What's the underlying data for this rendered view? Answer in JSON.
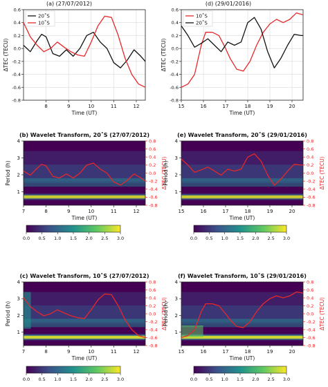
{
  "figure": {
    "panels": [
      {
        "id": "a",
        "title": "(a)    (27/07/2012)"
      },
      {
        "id": "d",
        "title": "(d)    (29/01/2016)"
      },
      {
        "id": "b",
        "title": "(b) Wavelet Transform, 20˚S (27/07/2012)"
      },
      {
        "id": "e",
        "title": "(e) Wavelet Transform, 20˚S (29/01/2016)"
      },
      {
        "id": "c",
        "title": "(c) Wavelet Transform, 10˚S (27/07/2012)"
      },
      {
        "id": "f",
        "title": "(f) Wavelet Transform, 10˚S (29/01/2016)"
      }
    ],
    "xlabel": "Time (UT)",
    "tec_label": "ΔTEC (TECU)",
    "period_label": "Period (h)",
    "colorbar_ticks": [
      "0.0",
      "0.5",
      "1.0",
      "1.5",
      "2.0",
      "2.5",
      "3.0"
    ],
    "colors": {
      "red": "#e8272a",
      "black": "#111111",
      "grid": "#d9d9d9"
    }
  },
  "chart_data": [
    {
      "panel": "a",
      "type": "line",
      "xlim": [
        7,
        12.4
      ],
      "ylim": [
        -0.8,
        0.6
      ],
      "xticks": [
        8,
        9,
        10,
        11,
        12
      ],
      "yticks": [
        -0.8,
        -0.6,
        -0.4,
        -0.2,
        0,
        0.2,
        0.4,
        0.6
      ],
      "grid": true,
      "legend": "top-left",
      "series": [
        {
          "name": "20˚S",
          "color": "#111111",
          "x": [
            7,
            7.3,
            7.6,
            7.8,
            8.0,
            8.3,
            8.6,
            8.9,
            9.2,
            9.5,
            9.8,
            10.1,
            10.4,
            10.7,
            11.0,
            11.3,
            11.6,
            11.9,
            12.2,
            12.4
          ],
          "y": [
            0.05,
            -0.05,
            0.12,
            0.22,
            0.18,
            -0.08,
            -0.12,
            -0.02,
            -0.12,
            0.0,
            0.2,
            0.25,
            0.1,
            0.0,
            -0.22,
            -0.3,
            -0.18,
            -0.02,
            -0.12,
            -0.2
          ]
        },
        {
          "name": "10˚S",
          "color": "#e8272a",
          "x": [
            7,
            7.3,
            7.6,
            7.9,
            8.2,
            8.5,
            8.8,
            9.1,
            9.4,
            9.7,
            10.0,
            10.3,
            10.6,
            10.9,
            11.2,
            11.5,
            11.8,
            12.1,
            12.4
          ],
          "y": [
            0.4,
            0.18,
            0.05,
            -0.05,
            0.0,
            0.1,
            0.02,
            -0.05,
            -0.1,
            -0.12,
            0.1,
            0.35,
            0.5,
            0.48,
            0.2,
            -0.15,
            -0.4,
            -0.55,
            -0.6
          ]
        }
      ]
    },
    {
      "panel": "d",
      "type": "line",
      "xlim": [
        15,
        20.5
      ],
      "ylim": [
        -0.8,
        0.6
      ],
      "xticks": [
        15,
        16,
        17,
        18,
        19,
        20
      ],
      "yticks": [
        -0.8,
        -0.6,
        -0.4,
        -0.2,
        0,
        0.2,
        0.4,
        0.6
      ],
      "grid": true,
      "legend": "top-left",
      "series": [
        {
          "name": "10˚S",
          "color": "#e8272a",
          "x": [
            15,
            15.3,
            15.6,
            15.9,
            16.1,
            16.4,
            16.7,
            17.0,
            17.2,
            17.5,
            17.8,
            18.1,
            18.4,
            18.7,
            19.0,
            19.3,
            19.6,
            19.9,
            20.2,
            20.5
          ],
          "y": [
            -0.6,
            -0.55,
            -0.4,
            0.05,
            0.25,
            0.25,
            0.2,
            0.0,
            -0.15,
            -0.32,
            -0.35,
            -0.2,
            0.05,
            0.25,
            0.38,
            0.45,
            0.4,
            0.45,
            0.55,
            0.52
          ]
        },
        {
          "name": "20˚S",
          "color": "#111111",
          "x": [
            15,
            15.3,
            15.6,
            15.9,
            16.2,
            16.5,
            16.8,
            17.1,
            17.4,
            17.7,
            18.0,
            18.3,
            18.6,
            18.9,
            19.2,
            19.5,
            19.8,
            20.1,
            20.4,
            20.5
          ],
          "y": [
            0.35,
            0.2,
            0.02,
            0.08,
            0.15,
            0.05,
            -0.05,
            0.1,
            0.05,
            0.1,
            0.4,
            0.48,
            0.3,
            -0.05,
            -0.3,
            -0.15,
            0.05,
            0.22,
            0.2,
            0.2
          ]
        }
      ]
    },
    {
      "panel": "b",
      "type": "heatmap",
      "x_range": [
        7,
        12.4
      ],
      "y_range": [
        0.2,
        4
      ],
      "xticks": [
        7,
        8,
        9,
        10,
        11,
        12
      ],
      "period_ticks": [
        1,
        2,
        3,
        4
      ],
      "tec_ylim": [
        -0.8,
        0.8
      ],
      "tec_ticks": [
        -0.8,
        -0.6,
        -0.4,
        -0.2,
        0,
        0.2,
        0.4,
        0.6,
        0.8
      ],
      "colorbar_range": [
        0,
        3
      ],
      "overlay_series": {
        "color": "#e8272a",
        "x": [
          7,
          7.3,
          7.6,
          7.8,
          8.0,
          8.3,
          8.6,
          8.9,
          9.2,
          9.5,
          9.8,
          10.1,
          10.4,
          10.7,
          11.0,
          11.3,
          11.6,
          11.9,
          12.2,
          12.4
        ],
        "y": [
          0.05,
          -0.05,
          0.12,
          0.22,
          0.18,
          -0.08,
          -0.12,
          -0.02,
          -0.12,
          0.0,
          0.2,
          0.25,
          0.1,
          0.0,
          -0.22,
          -0.3,
          -0.18,
          -0.02,
          -0.12,
          -0.2
        ]
      }
    },
    {
      "panel": "e",
      "type": "heatmap",
      "x_range": [
        15,
        20.5
      ],
      "y_range": [
        0.2,
        4
      ],
      "xticks": [
        15,
        16,
        17,
        18,
        19,
        20
      ],
      "period_ticks": [
        1,
        2,
        3,
        4
      ],
      "tec_ylim": [
        -0.8,
        0.8
      ],
      "tec_ticks": [
        -0.8,
        -0.6,
        -0.4,
        -0.2,
        0,
        0.2,
        0.4,
        0.6,
        0.8
      ],
      "colorbar_range": [
        0,
        3
      ],
      "overlay_series": {
        "color": "#e8272a",
        "x": [
          15,
          15.3,
          15.6,
          15.9,
          16.2,
          16.5,
          16.8,
          17.1,
          17.4,
          17.7,
          18.0,
          18.3,
          18.6,
          18.9,
          19.2,
          19.5,
          19.8,
          20.1,
          20.4,
          20.5
        ],
        "y": [
          0.35,
          0.2,
          0.02,
          0.08,
          0.15,
          0.05,
          -0.05,
          0.1,
          0.05,
          0.1,
          0.4,
          0.48,
          0.3,
          -0.05,
          -0.3,
          -0.15,
          0.05,
          0.22,
          0.2,
          0.2
        ]
      }
    },
    {
      "panel": "c",
      "type": "heatmap",
      "x_range": [
        7,
        12.4
      ],
      "y_range": [
        0.2,
        4
      ],
      "xticks": [
        7,
        8,
        9,
        10,
        11,
        12
      ],
      "period_ticks": [
        1,
        2,
        3,
        4
      ],
      "tec_ylim": [
        -0.8,
        0.8
      ],
      "tec_ticks": [
        -0.8,
        -0.6,
        -0.4,
        -0.2,
        0,
        0.2,
        0.4,
        0.6,
        0.8
      ],
      "colorbar_range": [
        0,
        3
      ],
      "overlay_series": {
        "color": "#e8272a",
        "x": [
          7,
          7.3,
          7.6,
          7.9,
          8.2,
          8.5,
          8.8,
          9.1,
          9.4,
          9.7,
          10.0,
          10.3,
          10.6,
          10.9,
          11.2,
          11.5,
          11.8,
          12.1,
          12.4
        ],
        "y": [
          0.4,
          0.18,
          0.05,
          -0.05,
          0.0,
          0.1,
          0.02,
          -0.05,
          -0.1,
          -0.12,
          0.1,
          0.35,
          0.5,
          0.48,
          0.2,
          -0.15,
          -0.4,
          -0.55,
          -0.6
        ]
      }
    },
    {
      "panel": "f",
      "type": "heatmap",
      "x_range": [
        15,
        20.5
      ],
      "y_range": [
        0.2,
        4
      ],
      "xticks": [
        15,
        16,
        17,
        18,
        19,
        20
      ],
      "period_ticks": [
        1,
        2,
        3,
        4
      ],
      "tec_ylim": [
        -0.8,
        0.8
      ],
      "tec_ticks": [
        -0.8,
        -0.6,
        -0.4,
        -0.2,
        0,
        0.2,
        0.4,
        0.6,
        0.8
      ],
      "colorbar_range": [
        0,
        3
      ],
      "overlay_series": {
        "color": "#e8272a",
        "x": [
          15,
          15.3,
          15.6,
          15.9,
          16.1,
          16.4,
          16.7,
          17.0,
          17.2,
          17.5,
          17.8,
          18.1,
          18.4,
          18.7,
          19.0,
          19.3,
          19.6,
          19.9,
          20.2,
          20.5
        ],
        "y": [
          -0.6,
          -0.55,
          -0.4,
          0.05,
          0.25,
          0.25,
          0.2,
          0.0,
          -0.15,
          -0.32,
          -0.35,
          -0.2,
          0.05,
          0.25,
          0.38,
          0.45,
          0.4,
          0.45,
          0.55,
          0.52
        ]
      }
    }
  ]
}
